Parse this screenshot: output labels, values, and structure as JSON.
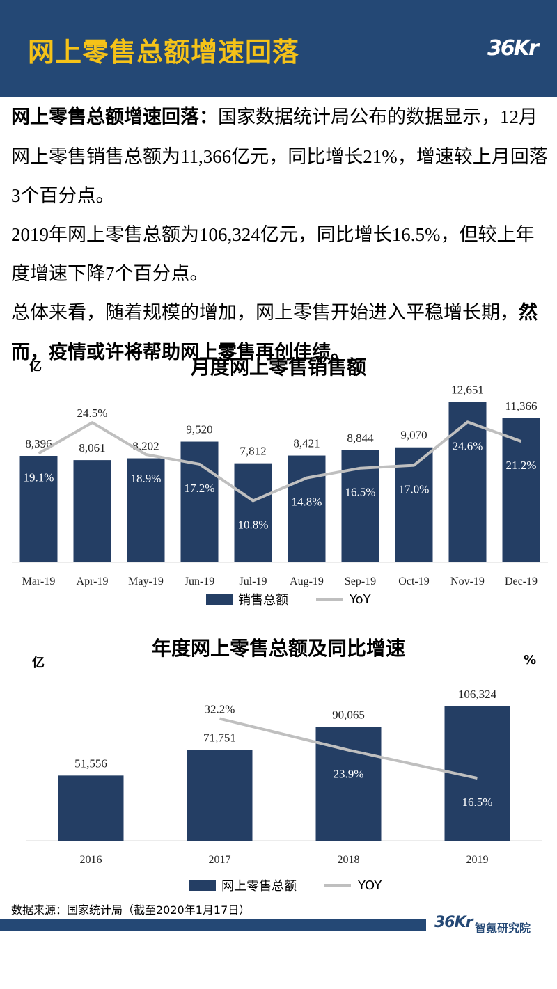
{
  "header": {
    "title": "网上零售总额增速回落",
    "logo": "36Kr"
  },
  "intro": {
    "p1_bold": "网上零售总额增速回落：",
    "p1_text": "国家数据统计局公布的数据显示，12月网上零售销售总额为11,366亿元，同比增长21%，增速较上月回落3个百分点。",
    "p2_text": "2019年网上零售总额为106,324亿元，同比增长16.5%，但较上年度增速下降7个百分点。",
    "p3_text": "总体来看，随着规模的增加，网上零售开始进入平稳增长期，",
    "p3_bold": "然而，疫情或许将帮助网上零售再创佳绩。"
  },
  "chart_data": [
    {
      "type": "bar",
      "title": "月度网上零售销售额",
      "unit_left": "亿",
      "categories": [
        "Mar-19",
        "Apr-19",
        "May-19",
        "Jun-19",
        "Jul-19",
        "Aug-19",
        "Sep-19",
        "Oct-19",
        "Nov-19",
        "Dec-19"
      ],
      "series": [
        {
          "name": "销售总额",
          "type": "bar",
          "values": [
            8396,
            8061,
            8202,
            9520,
            7812,
            8421,
            8844,
            9070,
            12651,
            11366
          ],
          "labels": [
            "8,396",
            "8,061",
            "8,202",
            "9,520",
            "7,812",
            "8,421",
            "8,844",
            "9,070",
            "12,651",
            "11,366"
          ]
        },
        {
          "name": "YoY",
          "type": "line",
          "values": [
            19.1,
            24.5,
            18.9,
            17.2,
            10.8,
            14.8,
            16.5,
            17.0,
            24.6,
            21.2
          ],
          "labels": [
            "19.1%",
            "24.5%",
            "18.9%",
            "17.2%",
            "10.8%",
            "14.8%",
            "16.5%",
            "17.0%",
            "24.6%",
            "21.2%"
          ]
        }
      ],
      "bar_ylim": [
        0,
        13500
      ],
      "line_ylim": [
        0,
        30
      ],
      "colors": {
        "bar": "#243e64",
        "line": "#bfbfbf"
      },
      "legend": "bottom"
    },
    {
      "type": "bar",
      "title": "年度网上零售总额及同比增速",
      "unit_left": "亿",
      "unit_right": "%",
      "categories": [
        "2016",
        "2017",
        "2018",
        "2019"
      ],
      "series": [
        {
          "name": "网上零售总额",
          "type": "bar",
          "values": [
            51556,
            71751,
            90065,
            106324
          ],
          "labels": [
            "51,556",
            "71,751",
            "90,065",
            "106,324"
          ]
        },
        {
          "name": "YOY",
          "type": "line",
          "values": [
            null,
            32.2,
            23.9,
            16.5
          ],
          "labels": [
            "",
            "32.2%",
            "23.9%",
            "16.5%"
          ]
        }
      ],
      "bar_ylim": [
        0,
        120000
      ],
      "line_ylim": [
        0,
        40
      ],
      "colors": {
        "bar": "#243e64",
        "line": "#bfbfbf"
      },
      "legend": "bottom"
    }
  ],
  "footer": {
    "source": "数据来源：国家统计局（截至2020年1月17日）",
    "logo": "36Kr",
    "org": "智氪研究院"
  }
}
